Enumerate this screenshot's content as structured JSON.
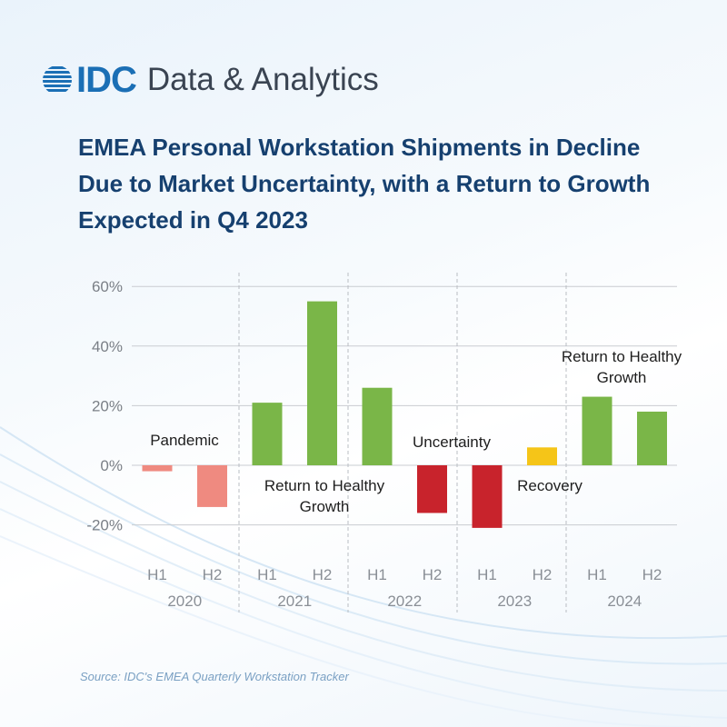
{
  "brand": {
    "logo": "IDC",
    "tagline": "Data & Analytics"
  },
  "headline": "EMEA Personal Workstation Shipments in Decline Due to Market Uncertainty, with a Return to Growth Expected in Q4 2023",
  "source": "Source: IDC's EMEA Quarterly Workstation Tracker",
  "chart_data": {
    "type": "bar",
    "title": "",
    "xlabel": "",
    "ylabel": "",
    "ylim": [
      -0.25,
      0.62
    ],
    "yticks": [
      -0.2,
      0,
      0.2,
      0.4,
      0.6
    ],
    "ytick_labels": [
      "-20%",
      "0%",
      "20%",
      "40%",
      "60%"
    ],
    "grid": true,
    "categories": [
      "H1",
      "H2",
      "H1",
      "H2",
      "H1",
      "H2",
      "H1",
      "H2",
      "H1",
      "H2"
    ],
    "years": [
      "2020",
      "2021",
      "2022",
      "2023",
      "2024"
    ],
    "values": [
      -0.02,
      -0.14,
      0.21,
      0.55,
      0.26,
      -0.16,
      -0.21,
      0.06,
      0.23,
      0.18
    ],
    "colors": [
      "#ef8a80",
      "#ef8a80",
      "#7ab648",
      "#7ab648",
      "#7ab648",
      "#c8232c",
      "#c8232c",
      "#f5c518",
      "#7ab648",
      "#7ab648"
    ],
    "annotations": [
      {
        "text": "Pandemic"
      },
      {
        "text": "Return to Healthy Growth",
        "lines": [
          "Return to Healthy",
          "Growth"
        ]
      },
      {
        "text": "Uncertainty"
      },
      {
        "text": "Recovery"
      },
      {
        "text": "Return to Healthy Growth",
        "lines": [
          "Return to Healthy",
          "Growth"
        ]
      }
    ]
  }
}
